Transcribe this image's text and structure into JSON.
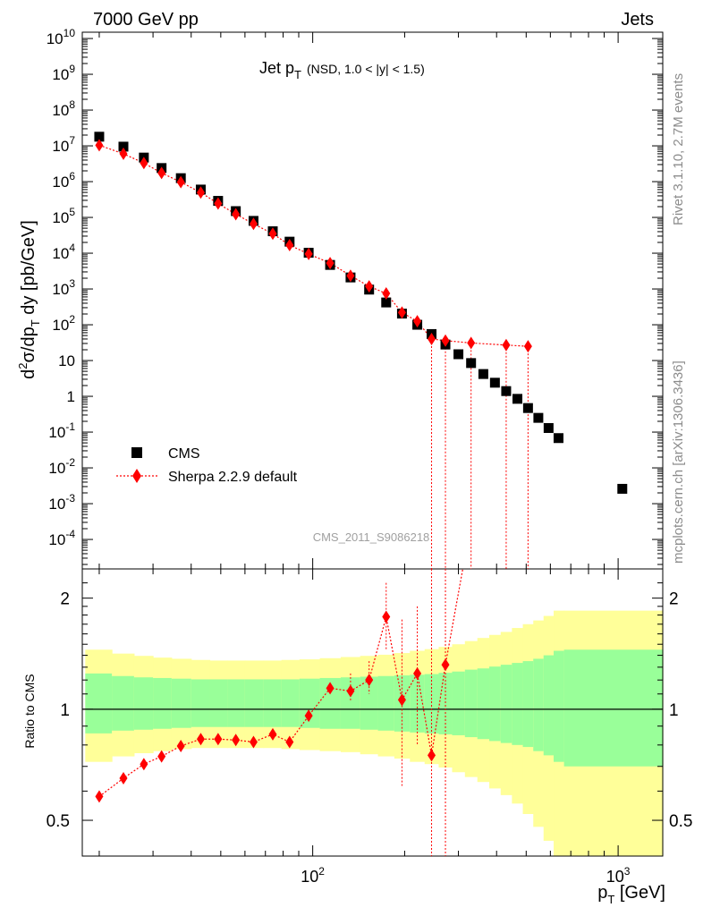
{
  "header": {
    "left": "7000 GeV pp",
    "right": "Jets"
  },
  "side": {
    "rivet": "Rivet 3.1.10,  2.7M events",
    "mcplots": "mcplots.cern.ch [arXiv:1306.3436]"
  },
  "chart_data": [
    {
      "type": "scatter",
      "panel": "main",
      "title_main": "Jet p",
      "title_sub": "T",
      "title_cuts": "(NSD, 1.0 < |y| < 1.5)",
      "watermark": "CMS_2011_S9086218",
      "ylabel": "d²σ/dp_T dy [pb/GeV]",
      "xscale": "log",
      "yscale": "log",
      "xlim": [
        17.6,
        1400
      ],
      "ylim": [
        1.5e-05,
        15000000000
      ],
      "legend_placement": "bottom-left",
      "y_tick_labels": [
        "10^10",
        "10^9",
        "10^8",
        "10^7",
        "10^6",
        "10^5",
        "10^4",
        "10^3",
        "10^2",
        "10",
        "1",
        "10^-1",
        "10^-2",
        "10^-3",
        "10^-4"
      ],
      "series": [
        {
          "name": "CMS",
          "color": "#000000",
          "marker": "square",
          "x": [
            20,
            24,
            28,
            32,
            37,
            43,
            49,
            56,
            64,
            74,
            84,
            97,
            114,
            133,
            153,
            174,
            196,
            220,
            245,
            272,
            300,
            330,
            362,
            395,
            430,
            468,
            507,
            548,
            592,
            638,
            1032
          ],
          "y": [
            18000000,
            9500000,
            4700000,
            2400000,
            1250000,
            600000,
            290000,
            150000,
            80000,
            41000,
            21000,
            10300,
            4700,
            2100,
            960,
            420,
            205,
            100,
            55,
            28,
            15,
            8.5,
            4.2,
            2.4,
            1.4,
            0.85,
            0.47,
            0.25,
            0.13,
            0.068,
            0.0026
          ]
        },
        {
          "name": "Sherpa 2.2.9 default",
          "color": "#ff0000",
          "marker": "diamond",
          "x": [
            20,
            24,
            28,
            32,
            37,
            43,
            49,
            56,
            64,
            74,
            84,
            97,
            114,
            133,
            153,
            174,
            196,
            220,
            245,
            272,
            330,
            430,
            507
          ],
          "y": [
            10400000,
            6000000,
            3300000,
            1750000,
            970000,
            495000,
            245000,
            123000,
            66000,
            35000,
            16800,
            9500,
            5300,
            2350,
            1180,
            750,
            220,
            125,
            40,
            36,
            31,
            27,
            25
          ]
        }
      ]
    },
    {
      "type": "scatter",
      "panel": "ratio",
      "ylabel": "Ratio to CMS",
      "xlabel": "p_T [GeV]",
      "xscale": "log",
      "yscale": "log",
      "xlim": [
        17.6,
        1400
      ],
      "ylim": [
        0.4,
        2.4
      ],
      "y_tick_labels": [
        "2",
        "1",
        "0.5"
      ],
      "x_tick_labels": [
        "10^2",
        "10^3"
      ],
      "reference": 1,
      "bands": {
        "inner_color": "#99ff99",
        "outer_color": "#ffff99",
        "x_edges": [
          18,
          22,
          26,
          30,
          34.5,
          40,
          46,
          52.5,
          60,
          69,
          79,
          90.5,
          105.5,
          123.5,
          143,
          163.5,
          185,
          208,
          232.5,
          258.5,
          286,
          315,
          346,
          378.5,
          412.5,
          449,
          487.5,
          527.5,
          570,
          615,
          665,
          1400
        ],
        "inner": [
          [
            0.86,
            1.25
          ],
          [
            0.875,
            1.23
          ],
          [
            0.88,
            1.22
          ],
          [
            0.885,
            1.215
          ],
          [
            0.89,
            1.21
          ],
          [
            0.895,
            1.205
          ],
          [
            0.895,
            1.205
          ],
          [
            0.895,
            1.205
          ],
          [
            0.895,
            1.205
          ],
          [
            0.895,
            1.205
          ],
          [
            0.895,
            1.205
          ],
          [
            0.89,
            1.21
          ],
          [
            0.885,
            1.215
          ],
          [
            0.885,
            1.22
          ],
          [
            0.88,
            1.225
          ],
          [
            0.875,
            1.23
          ],
          [
            0.87,
            1.235
          ],
          [
            0.865,
            1.24
          ],
          [
            0.86,
            1.245
          ],
          [
            0.855,
            1.255
          ],
          [
            0.85,
            1.265
          ],
          [
            0.84,
            1.28
          ],
          [
            0.83,
            1.29
          ],
          [
            0.82,
            1.305
          ],
          [
            0.81,
            1.32
          ],
          [
            0.8,
            1.335
          ],
          [
            0.79,
            1.35
          ],
          [
            0.77,
            1.37
          ],
          [
            0.75,
            1.4
          ],
          [
            0.72,
            1.44
          ],
          [
            0.7,
            1.45
          ]
        ],
        "outer": [
          [
            0.72,
            1.45
          ],
          [
            0.745,
            1.415
          ],
          [
            0.76,
            1.395
          ],
          [
            0.77,
            1.38
          ],
          [
            0.78,
            1.37
          ],
          [
            0.785,
            1.36
          ],
          [
            0.785,
            1.355
          ],
          [
            0.785,
            1.355
          ],
          [
            0.785,
            1.355
          ],
          [
            0.785,
            1.355
          ],
          [
            0.78,
            1.36
          ],
          [
            0.775,
            1.365
          ],
          [
            0.77,
            1.375
          ],
          [
            0.765,
            1.385
          ],
          [
            0.755,
            1.395
          ],
          [
            0.745,
            1.405
          ],
          [
            0.735,
            1.42
          ],
          [
            0.72,
            1.44
          ],
          [
            0.71,
            1.455
          ],
          [
            0.695,
            1.475
          ],
          [
            0.675,
            1.5
          ],
          [
            0.655,
            1.53
          ],
          [
            0.635,
            1.56
          ],
          [
            0.61,
            1.59
          ],
          [
            0.585,
            1.62
          ],
          [
            0.555,
            1.66
          ],
          [
            0.52,
            1.7
          ],
          [
            0.48,
            1.74
          ],
          [
            0.44,
            1.79
          ],
          [
            0.4,
            1.85
          ],
          [
            0.4,
            1.85
          ]
        ]
      },
      "series": [
        {
          "name": "Sherpa 2.2.9 default",
          "color": "#ff0000",
          "marker": "diamond",
          "x": [
            20,
            24,
            28,
            32,
            37,
            43,
            49,
            56,
            64,
            74,
            84,
            97,
            114,
            133,
            153,
            174,
            196,
            220,
            245,
            272
          ],
          "y": [
            0.58,
            0.65,
            0.71,
            0.745,
            0.795,
            0.83,
            0.83,
            0.825,
            0.815,
            0.855,
            0.815,
            0.96,
            1.14,
            1.12,
            1.2,
            1.78,
            1.06,
            1.25,
            0.75,
            1.32
          ]
        }
      ]
    }
  ],
  "legend": {
    "items": [
      {
        "label": "CMS"
      },
      {
        "label": "Sherpa 2.2.9 default"
      }
    ]
  }
}
